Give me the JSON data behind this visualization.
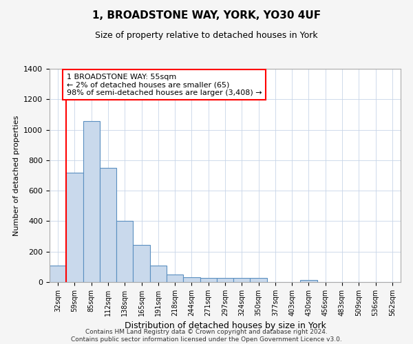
{
  "title1": "1, BROADSTONE WAY, YORK, YO30 4UF",
  "title2": "Size of property relative to detached houses in York",
  "xlabel": "Distribution of detached houses by size in York",
  "ylabel": "Number of detached properties",
  "categories": [
    "32sqm",
    "59sqm",
    "85sqm",
    "112sqm",
    "138sqm",
    "165sqm",
    "191sqm",
    "218sqm",
    "244sqm",
    "271sqm",
    "297sqm",
    "324sqm",
    "350sqm",
    "377sqm",
    "403sqm",
    "430sqm",
    "456sqm",
    "483sqm",
    "509sqm",
    "536sqm",
    "562sqm"
  ],
  "values": [
    107,
    720,
    1055,
    748,
    400,
    242,
    110,
    50,
    30,
    25,
    25,
    25,
    25,
    0,
    0,
    15,
    0,
    0,
    0,
    0,
    0
  ],
  "bar_color": "#c9d9ec",
  "bar_edge_color": "#5a8fc0",
  "annotation_text": "1 BROADSTONE WAY: 55sqm\n← 2% of detached houses are smaller (65)\n98% of semi-detached houses are larger (3,408) →",
  "annotation_box_color": "white",
  "annotation_box_edge_color": "red",
  "ylim": [
    0,
    1400
  ],
  "yticks": [
    0,
    200,
    400,
    600,
    800,
    1000,
    1200,
    1400
  ],
  "footnote": "Contains HM Land Registry data © Crown copyright and database right 2024.\nContains public sector information licensed under the Open Government Licence v3.0.",
  "bg_color": "#f5f5f5",
  "plot_bg_color": "#ffffff",
  "grid_color": "#c8d4e8",
  "title1_fontsize": 11,
  "title2_fontsize": 9
}
